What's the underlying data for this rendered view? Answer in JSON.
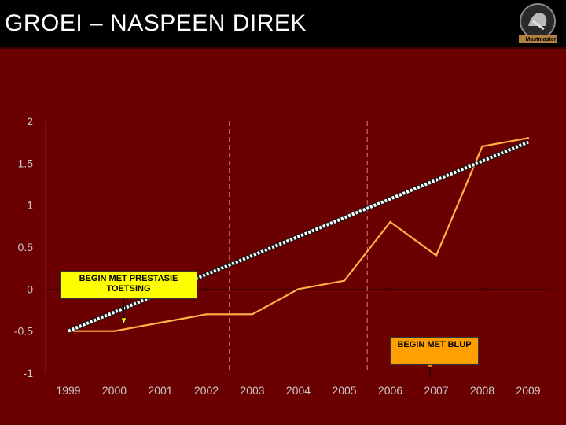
{
  "header": {
    "title": "GROEI – NASPEEN DIREK",
    "logo_text": "Mastmaster"
  },
  "colors": {
    "background": "#6a0000",
    "title_bar": "#000000",
    "series_line": "#ffb347",
    "trend_line": "#ffffff",
    "callout_yellow": "#ffff00",
    "callout_orange": "#ffa000"
  },
  "chart_data": {
    "type": "line",
    "title": "",
    "xlabel": "",
    "ylabel": "",
    "categories": [
      "1999",
      "2000",
      "2001",
      "2002",
      "2003",
      "2004",
      "2005",
      "2006",
      "2007",
      "2008",
      "2009"
    ],
    "series": [
      {
        "values": [
          -0.5,
          -0.5,
          -0.4,
          -0.3,
          -0.3,
          0.0,
          0.1,
          0.8,
          0.4,
          1.7,
          1.8
        ]
      }
    ],
    "trendline": {
      "start": [
        1999,
        -0.5
      ],
      "end": [
        2009,
        1.75
      ],
      "style": "dotted"
    },
    "ylim": [
      -1,
      2
    ],
    "yticks": [
      "2",
      "1.5",
      "1",
      "0.5",
      "0",
      "-0.5",
      "-1"
    ],
    "vertical_markers": [
      "2002.5",
      "2005.5"
    ],
    "grid": false,
    "annotations": [
      {
        "text": "BEGIN MET PRESTASIE TOETSING",
        "points_to": "2000"
      },
      {
        "text": "BEGIN MET BLUP",
        "points_to": "2007"
      }
    ]
  }
}
